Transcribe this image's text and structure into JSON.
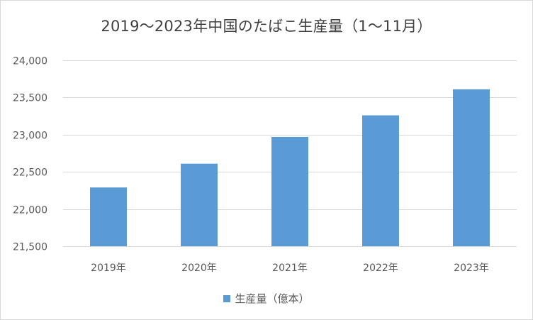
{
  "chart_data": {
    "type": "bar",
    "title": "2019〜2023年中国のたばこ生産量（1〜11月）",
    "categories": [
      "2019年",
      "2020年",
      "2021年",
      "2022年",
      "2023年"
    ],
    "series": [
      {
        "name": "生産量（億本）",
        "values": [
          22290,
          22610,
          22970,
          23260,
          23610
        ],
        "color": "#5b9bd5"
      }
    ],
    "ylim": [
      21500,
      24000
    ],
    "yticks": [
      21500,
      22000,
      22500,
      23000,
      23500,
      24000
    ],
    "ytick_labels": [
      "21,500",
      "22,000",
      "22,500",
      "23,000",
      "23,500",
      "24,000"
    ],
    "grid": true,
    "legend_position": "bottom",
    "gridline_color": "#d9d9d9"
  }
}
